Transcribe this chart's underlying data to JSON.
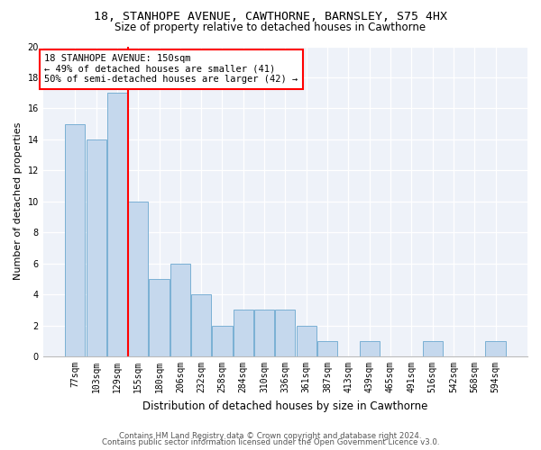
{
  "title": "18, STANHOPE AVENUE, CAWTHORNE, BARNSLEY, S75 4HX",
  "subtitle": "Size of property relative to detached houses in Cawthorne",
  "xlabel": "Distribution of detached houses by size in Cawthorne",
  "ylabel": "Number of detached properties",
  "categories": [
    "77sqm",
    "103sqm",
    "129sqm",
    "155sqm",
    "180sqm",
    "206sqm",
    "232sqm",
    "258sqm",
    "284sqm",
    "310sqm",
    "336sqm",
    "361sqm",
    "387sqm",
    "413sqm",
    "439sqm",
    "465sqm",
    "491sqm",
    "516sqm",
    "542sqm",
    "568sqm",
    "594sqm"
  ],
  "values": [
    15,
    14,
    17,
    10,
    5,
    6,
    4,
    2,
    3,
    3,
    3,
    2,
    1,
    0,
    1,
    0,
    0,
    1,
    0,
    0,
    1
  ],
  "bar_color": "#c5d8ed",
  "bar_edge_color": "#7ab0d4",
  "highlight_index": 2,
  "annotation_line1": "18 STANHOPE AVENUE: 150sqm",
  "annotation_line2": "← 49% of detached houses are smaller (41)",
  "annotation_line3": "50% of semi-detached houses are larger (42) →",
  "annotation_box_color": "white",
  "annotation_box_edge_color": "red",
  "vline_color": "red",
  "ylim": [
    0,
    20
  ],
  "yticks": [
    0,
    2,
    4,
    6,
    8,
    10,
    12,
    14,
    16,
    18,
    20
  ],
  "background_color": "#eef2f9",
  "footer1": "Contains HM Land Registry data © Crown copyright and database right 2024.",
  "footer2": "Contains public sector information licensed under the Open Government Licence v3.0.",
  "title_fontsize": 9.5,
  "subtitle_fontsize": 8.5,
  "ylabel_fontsize": 8,
  "xlabel_fontsize": 8.5,
  "tick_fontsize": 7,
  "annot_fontsize": 7.5,
  "footer_fontsize": 6.2
}
